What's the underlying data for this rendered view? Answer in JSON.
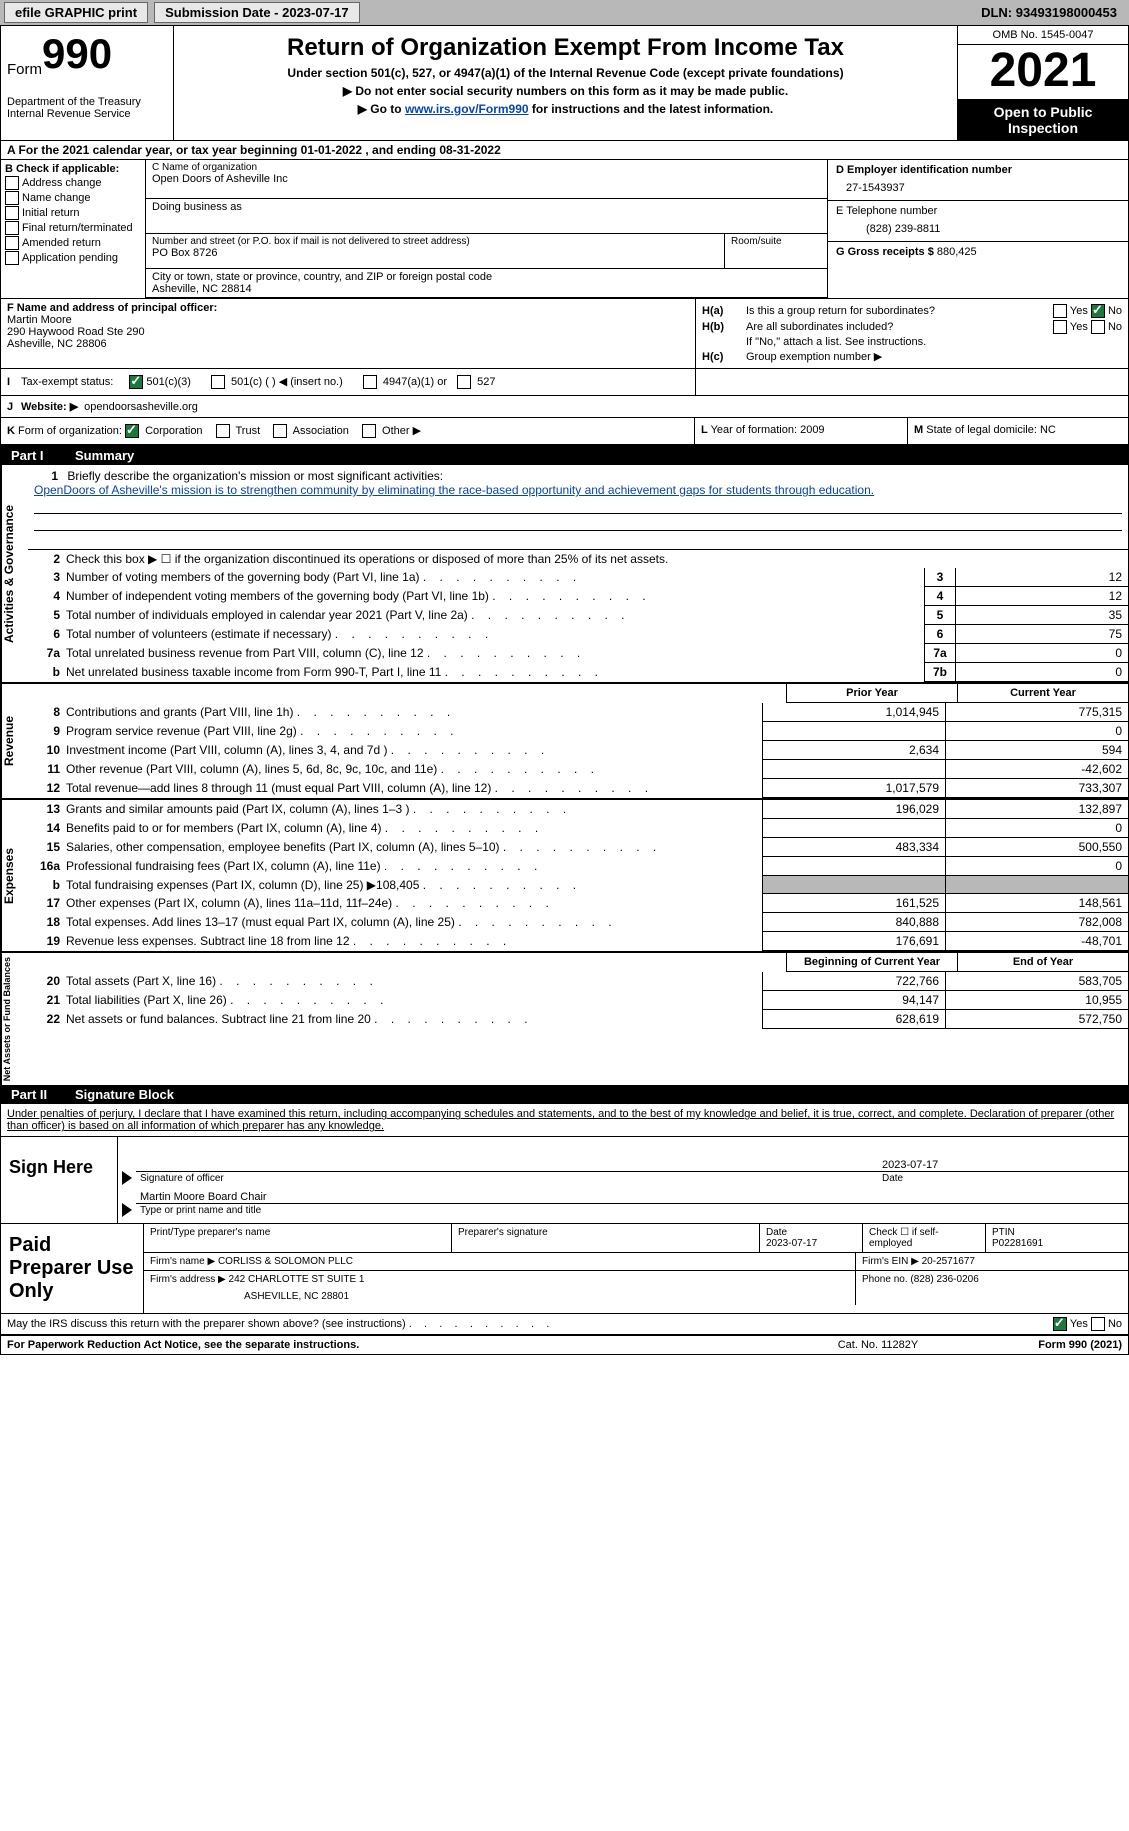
{
  "topbar": {
    "efile": "efile GRAPHIC print",
    "subdate_label": "Submission Date - ",
    "subdate": "2023-07-17",
    "dln_label": "DLN: ",
    "dln": "93493198000453"
  },
  "header": {
    "form_label": "Form",
    "form_num": "990",
    "dept": "Department of the Treasury",
    "irs": "Internal Revenue Service",
    "title": "Return of Organization Exempt From Income Tax",
    "sub1": "Under section 501(c), 527, or 4947(a)(1) of the Internal Revenue Code (except private foundations)",
    "sub2": "▶ Do not enter social security numbers on this form as it may be made public.",
    "sub3_pre": "▶ Go to ",
    "sub3_link": "www.irs.gov/Form990",
    "sub3_post": " for instructions and the latest information.",
    "omb": "OMB No. 1545-0047",
    "year": "2021",
    "open": "Open to Public Inspection"
  },
  "rowA": "A For the 2021 calendar year, or tax year beginning 01-01-2022    , and ending 08-31-2022",
  "colB": {
    "label": "B Check if applicable:",
    "addr_change": "Address change",
    "name_change": "Name change",
    "initial": "Initial return",
    "final": "Final return/terminated",
    "amended": "Amended return",
    "pending": "Application pending"
  },
  "colC": {
    "name_lab": "C Name of organization",
    "name": "Open Doors of Asheville Inc",
    "dba_lab": "Doing business as",
    "addr_lab": "Number and street (or P.O. box if mail is not delivered to street address)",
    "addr": "PO Box 8726",
    "room_lab": "Room/suite",
    "city_lab": "City or town, state or province, country, and ZIP or foreign postal code",
    "city": "Asheville, NC  28814"
  },
  "colD": {
    "ein_lab": "D Employer identification number",
    "ein": "27-1543937",
    "tel_lab": "E Telephone number",
    "tel": "(828) 239-8811",
    "gross_lab": "G Gross receipts $ ",
    "gross": "880,425"
  },
  "colF": {
    "lab": "F  Name and address of principal officer:",
    "name": "Martin Moore",
    "street": "290 Haywood Road Ste 290",
    "city": "Asheville, NC  28806"
  },
  "colH": {
    "ha_lab": "H(a)",
    "ha_text": "Is this a group return for subordinates?",
    "hb_lab": "H(b)",
    "hb_text": "Are all subordinates included?",
    "hb_note": "If \"No,\" attach a list. See instructions.",
    "hc_lab": "H(c)",
    "hc_text": "Group exemption number ▶",
    "yes": "Yes",
    "no": "No"
  },
  "rowI": {
    "lab": "I",
    "text": "Tax-exempt status:",
    "o1": "501(c)(3)",
    "o2": "501(c) (   ) ◀ (insert no.)",
    "o3": "4947(a)(1) or",
    "o4": "527"
  },
  "rowJ": {
    "lab": "J",
    "text": "Website: ▶",
    "url": "opendoorsasheville.org"
  },
  "rowK": {
    "lab": "K",
    "text": "Form of organization:",
    "corp": "Corporation",
    "trust": "Trust",
    "assoc": "Association",
    "other": "Other ▶"
  },
  "rowL": {
    "lab": "L",
    "text": "Year of formation: ",
    "val": "2009"
  },
  "rowM": {
    "lab": "M",
    "text": "State of legal domicile: ",
    "val": "NC"
  },
  "partI": {
    "num": "Part I",
    "title": "Summary"
  },
  "vlabels": {
    "ag": "Activities & Governance",
    "rev": "Revenue",
    "exp": "Expenses",
    "na": "Net Assets or Fund Balances"
  },
  "mission": {
    "num": "1",
    "lab": "Briefly describe the organization's mission or most significant activities:",
    "text": "OpenDoors of Asheville's mission is to strengthen community by eliminating the race-based opportunity and achievement gaps for students through education."
  },
  "line2": {
    "num": "2",
    "text": "Check this box ▶ ☐  if the organization discontinued its operations or disposed of more than 25% of its net assets."
  },
  "lines_ag": [
    {
      "n": "3",
      "t": "Number of voting members of the governing body (Part VI, line 1a)",
      "box": "3",
      "v": "12"
    },
    {
      "n": "4",
      "t": "Number of independent voting members of the governing body (Part VI, line 1b)",
      "box": "4",
      "v": "12"
    },
    {
      "n": "5",
      "t": "Total number of individuals employed in calendar year 2021 (Part V, line 2a)",
      "box": "5",
      "v": "35"
    },
    {
      "n": "6",
      "t": "Total number of volunteers (estimate if necessary)",
      "box": "6",
      "v": "75"
    },
    {
      "n": "7a",
      "t": "Total unrelated business revenue from Part VIII, column (C), line 12",
      "box": "7a",
      "v": "0"
    },
    {
      "n": "b",
      "t": "Net unrelated business taxable income from Form 990-T, Part I, line 11",
      "box": "7b",
      "v": "0"
    }
  ],
  "year_hdr": {
    "py": "Prior Year",
    "cy": "Current Year"
  },
  "lines_rev": [
    {
      "n": "8",
      "t": "Contributions and grants (Part VIII, line 1h)",
      "py": "1,014,945",
      "cy": "775,315"
    },
    {
      "n": "9",
      "t": "Program service revenue (Part VIII, line 2g)",
      "py": "",
      "cy": "0"
    },
    {
      "n": "10",
      "t": "Investment income (Part VIII, column (A), lines 3, 4, and 7d )",
      "py": "2,634",
      "cy": "594"
    },
    {
      "n": "11",
      "t": "Other revenue (Part VIII, column (A), lines 5, 6d, 8c, 9c, 10c, and 11e)",
      "py": "",
      "cy": "-42,602"
    },
    {
      "n": "12",
      "t": "Total revenue—add lines 8 through 11 (must equal Part VIII, column (A), line 12)",
      "py": "1,017,579",
      "cy": "733,307"
    }
  ],
  "lines_exp": [
    {
      "n": "13",
      "t": "Grants and similar amounts paid (Part IX, column (A), lines 1–3 )",
      "py": "196,029",
      "cy": "132,897"
    },
    {
      "n": "14",
      "t": "Benefits paid to or for members (Part IX, column (A), line 4)",
      "py": "",
      "cy": "0"
    },
    {
      "n": "15",
      "t": "Salaries, other compensation, employee benefits (Part IX, column (A), lines 5–10)",
      "py": "483,334",
      "cy": "500,550"
    },
    {
      "n": "16a",
      "t": "Professional fundraising fees (Part IX, column (A), line 11e)",
      "py": "",
      "cy": "0"
    },
    {
      "n": "b",
      "t": "Total fundraising expenses (Part IX, column (D), line 25) ▶108,405",
      "py": "grey",
      "cy": "grey"
    },
    {
      "n": "17",
      "t": "Other expenses (Part IX, column (A), lines 11a–11d, 11f–24e)",
      "py": "161,525",
      "cy": "148,561"
    },
    {
      "n": "18",
      "t": "Total expenses. Add lines 13–17 (must equal Part IX, column (A), line 25)",
      "py": "840,888",
      "cy": "782,008"
    },
    {
      "n": "19",
      "t": "Revenue less expenses. Subtract line 18 from line 12",
      "py": "176,691",
      "cy": "-48,701"
    }
  ],
  "year_hdr2": {
    "py": "Beginning of Current Year",
    "cy": "End of Year"
  },
  "lines_na": [
    {
      "n": "20",
      "t": "Total assets (Part X, line 16)",
      "py": "722,766",
      "cy": "583,705"
    },
    {
      "n": "21",
      "t": "Total liabilities (Part X, line 26)",
      "py": "94,147",
      "cy": "10,955"
    },
    {
      "n": "22",
      "t": "Net assets or fund balances. Subtract line 21 from line 20",
      "py": "628,619",
      "cy": "572,750"
    }
  ],
  "partII": {
    "num": "Part II",
    "title": "Signature Block"
  },
  "sig": {
    "text": "Under penalties of perjury, I declare that I have examined this return, including accompanying schedules and statements, and to the best of my knowledge and belief, it is true, correct, and complete. Declaration of preparer (other than officer) is based on all information of which preparer has any knowledge.",
    "here": "Sign Here",
    "sig_of_officer": "Signature of officer",
    "date": "2023-07-17",
    "date_lab": "Date",
    "name": "Martin Moore  Board Chair",
    "name_lab": "Type or print name and title"
  },
  "prep": {
    "lab": "Paid Preparer Use Only",
    "print_lab": "Print/Type preparer's name",
    "psig_lab": "Preparer's signature",
    "pdate_lab": "Date",
    "pdate": "2023-07-17",
    "check_lab": "Check ☐ if self-employed",
    "ptin_lab": "PTIN",
    "ptin": "P02281691",
    "firm_name_lab": "Firm's name    ▶ ",
    "firm_name": "CORLISS & SOLOMON PLLC",
    "firm_ein_lab": "Firm's EIN ▶ ",
    "firm_ein": "20-2571677",
    "firm_addr_lab": "Firm's address ▶ ",
    "firm_addr1": "242 CHARLOTTE ST SUITE 1",
    "firm_addr2": "ASHEVILLE, NC  28801",
    "phone_lab": "Phone no. ",
    "phone": "(828) 236-0206"
  },
  "footer": {
    "may": "May the IRS discuss this return with the preparer shown above? (see instructions)",
    "yes": "Yes",
    "no": "No",
    "paperwork": "For Paperwork Reduction Act Notice, see the separate instructions.",
    "cat": "Cat. No. 11282Y",
    "form": "Form 990 (2021)"
  }
}
